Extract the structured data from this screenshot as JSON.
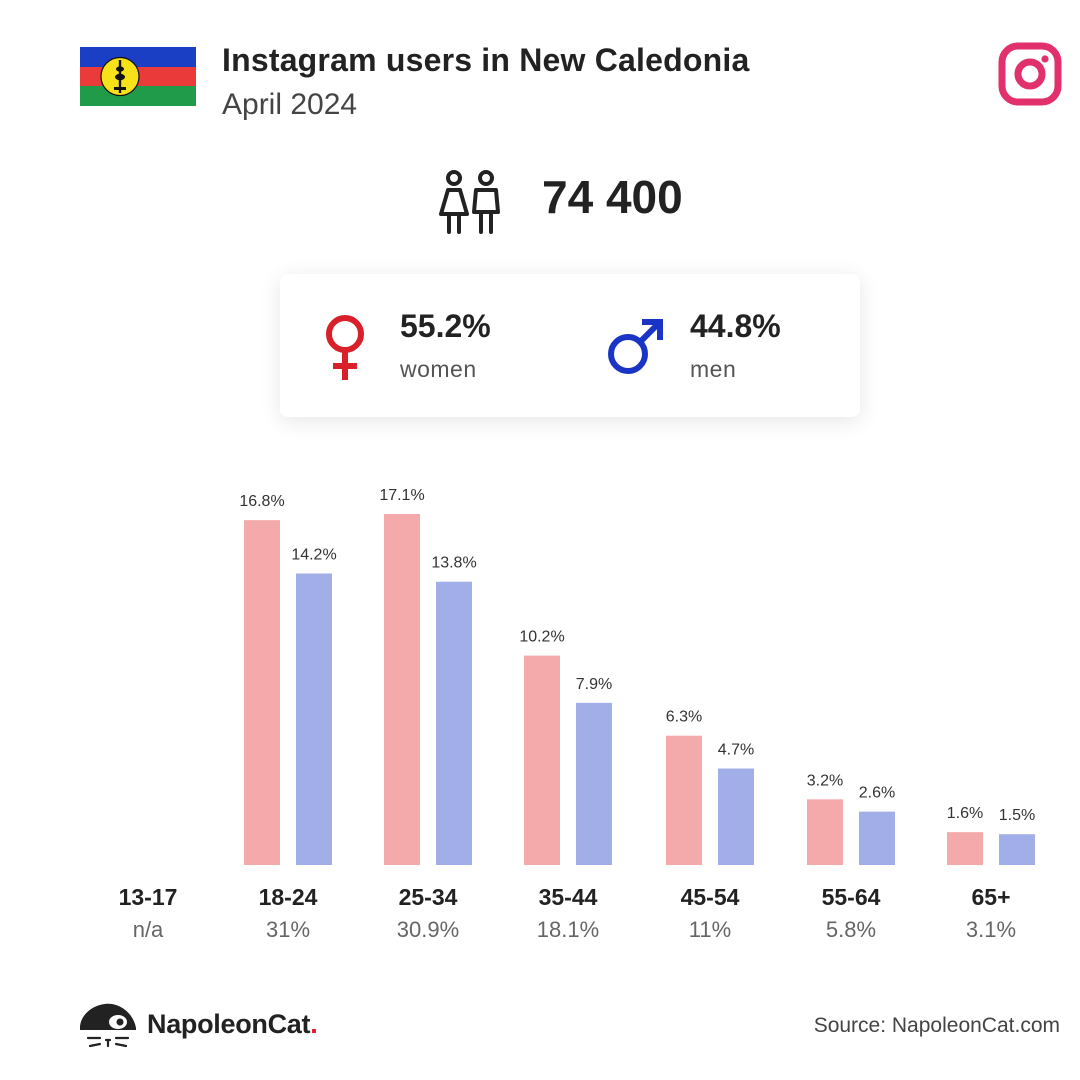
{
  "header": {
    "title": "Instagram users in New Caledonia",
    "subtitle": "April 2024"
  },
  "total_users": "74 400",
  "gender": {
    "women_pct": "55.2%",
    "women_label": "women",
    "men_pct": "44.8%",
    "men_label": "men"
  },
  "colors": {
    "women_bar": "#f4a9ab",
    "men_bar": "#a2aee8",
    "female_symbol": "#d9202a",
    "male_symbol": "#1a35c6",
    "instagram": "#e1306c"
  },
  "chart_data": {
    "type": "bar",
    "categories": [
      "13-17",
      "18-24",
      "25-34",
      "35-44",
      "45-54",
      "55-64",
      "65+"
    ],
    "category_totals": [
      "n/a",
      "31%",
      "30.9%",
      "18.1%",
      "11%",
      "5.8%",
      "3.1%"
    ],
    "series": [
      {
        "name": "women",
        "values": [
          null,
          16.8,
          17.1,
          10.2,
          6.3,
          3.2,
          1.6
        ],
        "labels": [
          "",
          "16.8%",
          "17.1%",
          "10.2%",
          "6.3%",
          "3.2%",
          "1.6%"
        ],
        "color": "#f4a9ab"
      },
      {
        "name": "men",
        "values": [
          null,
          14.2,
          13.8,
          7.9,
          4.7,
          2.6,
          1.5
        ],
        "labels": [
          "",
          "14.2%",
          "13.8%",
          "7.9%",
          "4.7%",
          "2.6%",
          "1.5%"
        ],
        "color": "#a2aee8"
      }
    ],
    "ylim": [
      0,
      17.1
    ],
    "grid": false
  },
  "footer": {
    "brand": "NapoleonCat",
    "brand_dot": ".",
    "source": "Source: NapoleonCat.com"
  }
}
